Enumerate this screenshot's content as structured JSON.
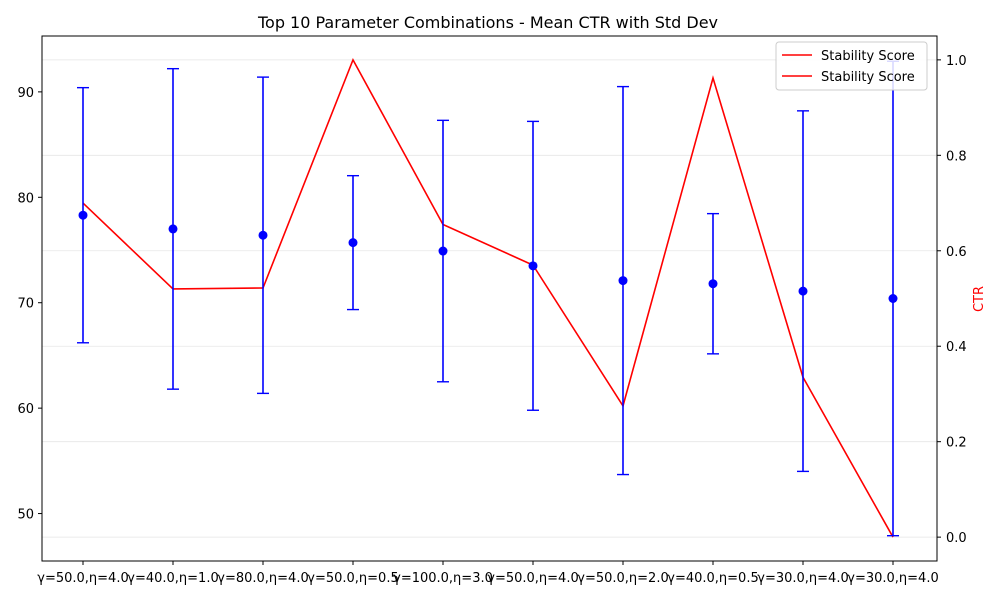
{
  "chart_data": {
    "type": "line",
    "title": "Top 10 Parameter Combinations - Mean CTR with Std Dev",
    "categories": [
      "γ=50.0,η=4.0",
      "γ=40.0,η=1.0",
      "γ=80.0,η=4.0",
      "γ=50.0,η=0.5",
      "γ=100.0,η=3.0",
      "γ=50.0,η=4.0",
      "γ=50.0,η=2.0",
      "γ=40.0,η=0.5",
      "γ=30.0,η=4.0",
      "γ=30.0,η=4.0"
    ],
    "left_axis": {
      "label": "",
      "ylim": [
        45.5,
        95.3
      ],
      "ticks": [
        50,
        60,
        70,
        80,
        90
      ],
      "tick_labels": [
        "50",
        "60",
        "70",
        "80",
        "90"
      ]
    },
    "right_axis": {
      "label": "CTR",
      "label_color": "#ff0000",
      "ylim": [
        -0.05,
        1.05
      ],
      "ticks": [
        0.0,
        0.2,
        0.4,
        0.6,
        0.8,
        1.0
      ],
      "tick_labels": [
        "0.0",
        "0.2",
        "0.4",
        "0.6",
        "0.8",
        "1.0"
      ]
    },
    "errorbar_series": {
      "axis": "left",
      "color": "#0000ff",
      "values": [
        78.3,
        77.0,
        76.4,
        75.7,
        74.9,
        73.5,
        72.1,
        71.8,
        71.1,
        70.4
      ],
      "std": [
        12.1,
        15.2,
        15.0,
        6.35,
        12.4,
        13.7,
        18.4,
        6.65,
        17.1,
        22.5
      ]
    },
    "line_series": {
      "axis": "right",
      "color": "#ff0000",
      "values": [
        0.7,
        0.52,
        0.522,
        1.0,
        0.655,
        0.57,
        0.275,
        0.962,
        0.335,
        0.0
      ]
    },
    "legend": {
      "placement": "top-right",
      "entries": [
        "Stability Score",
        "Stability Score"
      ]
    },
    "grid": true
  }
}
